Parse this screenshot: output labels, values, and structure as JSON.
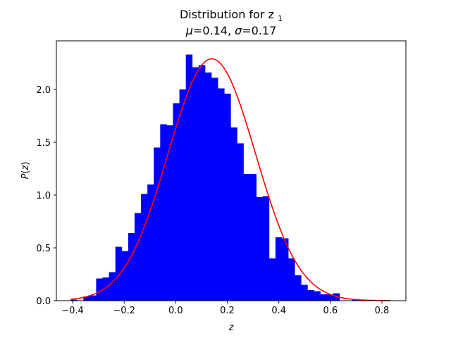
{
  "chart_data": {
    "type": "bar",
    "title_line1": "Distribution for z",
    "title_subscript": "1",
    "title_mu_symbol": "μ",
    "title_mu_value": "=0.14, ",
    "title_sigma_symbol": "σ",
    "title_sigma_value": "=0.17",
    "xlabel": "z",
    "ylabel_symbol": "P",
    "ylabel_open": "(",
    "ylabel_var": "z",
    "ylabel_close": ")",
    "xlim": [
      -0.463,
      0.893
    ],
    "ylim": [
      0.0,
      2.46
    ],
    "xticks": [
      -0.4,
      -0.2,
      0.0,
      0.2,
      0.4,
      0.6,
      0.8
    ],
    "xtick_labels": [
      "−0.4",
      "−0.2",
      "0.0",
      "0.2",
      "0.4",
      "0.6",
      "0.8"
    ],
    "yticks": [
      0.0,
      0.5,
      1.0,
      1.5,
      2.0
    ],
    "ytick_labels": [
      "0.0",
      "0.5",
      "1.0",
      "1.5",
      "2.0"
    ],
    "bin_start": -0.408,
    "bin_width": 0.02484,
    "histogram_values": [
      0.01,
      0.0,
      0.04,
      0.05,
      0.21,
      0.22,
      0.27,
      0.51,
      0.47,
      0.64,
      0.83,
      1.01,
      1.1,
      1.45,
      1.67,
      1.66,
      1.87,
      2.0,
      2.33,
      2.21,
      2.23,
      2.16,
      2.11,
      2.01,
      1.96,
      1.64,
      1.49,
      1.2,
      1.2,
      0.98,
      0.99,
      0.4,
      0.6,
      0.59,
      0.4,
      0.24,
      0.15,
      0.1,
      0.09,
      0.06,
      0.06,
      0.07,
      0.0,
      0.0,
      0.01,
      0.0,
      0.0,
      0.0,
      0.0,
      0.0
    ],
    "bar_color": "#0000ff",
    "fit_curve": {
      "name": "normal pdf",
      "mu": 0.14,
      "sigma": 0.17,
      "peak": 2.29,
      "x_range": [
        -0.408,
        0.834
      ],
      "color": "#ff0000"
    },
    "grid": false,
    "legend": "none"
  }
}
